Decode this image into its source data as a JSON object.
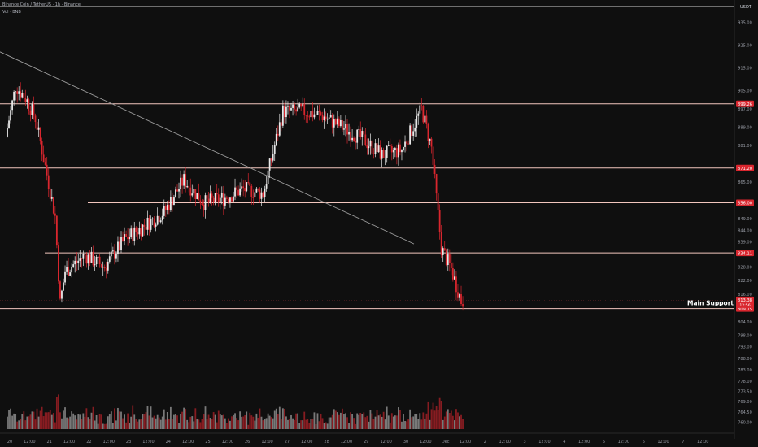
{
  "header": {
    "symbol_line": "Binance Coin / TetherUS · 1h · Binance",
    "volume_line": "Vol · BNB"
  },
  "price_axis": {
    "currency": "USDT",
    "ticks": [
      "935.00",
      "925.00",
      "915.00",
      "905.00",
      "897.00",
      "889.00",
      "881.00",
      "873.00",
      "865.00",
      "857.00",
      "849.00",
      "844.00",
      "839.00",
      "834.00",
      "828.00",
      "822.00",
      "816.00",
      "810.00",
      "804.00",
      "798.00",
      "793.00",
      "788.00",
      "783.00",
      "778.00",
      "773.50",
      "769.00",
      "764.50",
      "760.00"
    ],
    "label_prices": [
      935,
      925,
      915,
      905,
      897,
      889,
      881,
      873,
      865,
      857,
      849,
      844,
      839,
      834,
      828,
      822,
      816,
      810,
      804,
      798,
      793,
      788,
      783,
      778,
      773.5,
      769,
      764.5,
      760
    ]
  },
  "time_axis": {
    "labels": [
      "20",
      "12:00",
      "21",
      "12:00",
      "22",
      "12:00",
      "23",
      "12:00",
      "24",
      "12:00",
      "25",
      "12:00",
      "26",
      "12:00",
      "27",
      "12:00",
      "28",
      "12:00",
      "29",
      "12:00",
      "30",
      "12:00",
      "Dec",
      "12:00",
      "2",
      "12:00",
      "3",
      "12:00",
      "4",
      "12:00",
      "5",
      "12:00",
      "6",
      "12:00",
      "7",
      "12:00"
    ]
  },
  "annotation": {
    "main_support": "Main Support"
  },
  "colors": {
    "background": "#0f0f0f",
    "up_candle": "#e8e8e8",
    "down_candle": "#d9262e",
    "level_line": "#f2c6be",
    "trendline": "#9a9a9a",
    "price_badge": "#d9262e"
  },
  "chart_data": {
    "type": "candlestick",
    "title": "Binance Coin / TetherUS · 1h · Binance",
    "ylabel": "USDT",
    "ylim": [
      757,
      939
    ],
    "grid": false,
    "horizontal_levels": [
      {
        "price": 899.26,
        "label": "899.26"
      },
      {
        "price": 871.2,
        "label": "871.20"
      },
      {
        "price": 856.0,
        "label": "856.00"
      },
      {
        "price": 834.11,
        "label": "834.11"
      },
      {
        "price": 809.75,
        "label": "809.75",
        "annotation": "Main Support"
      }
    ],
    "current_price": {
      "price": 813.38,
      "label": "813.38",
      "countdown": "12:56"
    },
    "trendline": {
      "from": {
        "date": "Nov 20 00:00",
        "price": 922
      },
      "to": {
        "date": "Nov 30 00:00",
        "price": 838
      }
    },
    "price_path": [
      {
        "t": "Nov 20 00:00",
        "price": 885
      },
      {
        "t": "Nov 20 06:00",
        "price": 907
      },
      {
        "t": "Nov 20 12:00",
        "price": 902
      },
      {
        "t": "Nov 20 18:00",
        "price": 893
      },
      {
        "t": "Nov 21 00:00",
        "price": 872
      },
      {
        "t": "Nov 21 06:00",
        "price": 850
      },
      {
        "t": "Nov 21 09:00",
        "price": 812
      },
      {
        "t": "Nov 21 12:00",
        "price": 826
      },
      {
        "t": "Nov 22 00:00",
        "price": 833
      },
      {
        "t": "Nov 22 12:00",
        "price": 828
      },
      {
        "t": "Nov 23 00:00",
        "price": 840
      },
      {
        "t": "Nov 23 12:00",
        "price": 846
      },
      {
        "t": "Nov 24 00:00",
        "price": 852
      },
      {
        "t": "Nov 24 12:00",
        "price": 866
      },
      {
        "t": "Nov 25 00:00",
        "price": 856
      },
      {
        "t": "Nov 25 12:00",
        "price": 858
      },
      {
        "t": "Nov 26 00:00",
        "price": 862
      },
      {
        "t": "Nov 26 12:00",
        "price": 860
      },
      {
        "t": "Nov 27 00:00",
        "price": 896
      },
      {
        "t": "Nov 27 12:00",
        "price": 896
      },
      {
        "t": "Nov 28 00:00",
        "price": 894
      },
      {
        "t": "Nov 28 12:00",
        "price": 889
      },
      {
        "t": "Nov 29 00:00",
        "price": 884
      },
      {
        "t": "Nov 29 12:00",
        "price": 877
      },
      {
        "t": "Nov 30 00:00",
        "price": 879
      },
      {
        "t": "Nov 30 12:00",
        "price": 897
      },
      {
        "t": "Nov 30 18:00",
        "price": 880
      },
      {
        "t": "Dec 01 00:00",
        "price": 836
      },
      {
        "t": "Dec 01 06:00",
        "price": 827
      },
      {
        "t": "Dec 01 12:00",
        "price": 813
      }
    ]
  }
}
